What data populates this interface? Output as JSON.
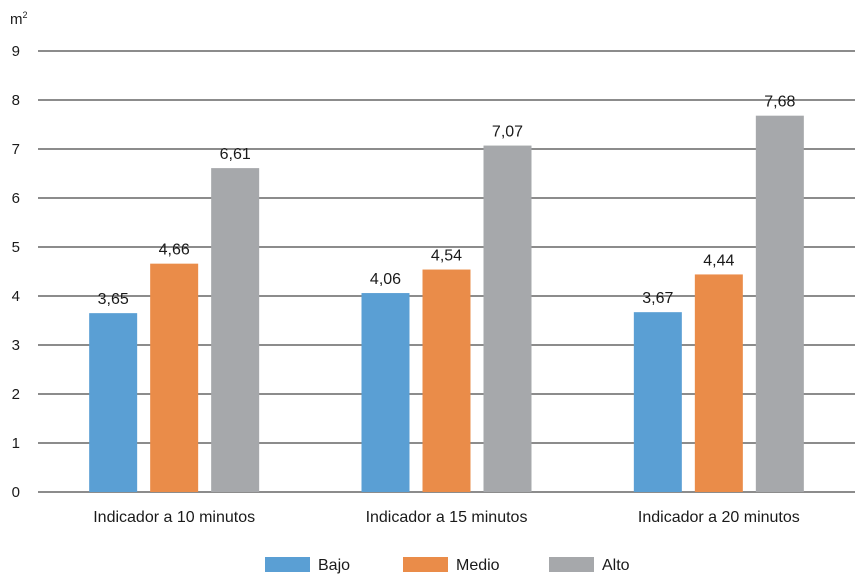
{
  "chart_data": {
    "type": "bar",
    "title": "",
    "xlabel": "",
    "ylabel": "",
    "y_unit": "m",
    "y_unit_superscript": "2",
    "categories": [
      "Indicador a 10 minutos",
      "Indicador a 15 minutos",
      "Indicador a 20 minutos"
    ],
    "series": [
      {
        "name": "Bajo",
        "color": "#5a9fd4",
        "values": [
          3.65,
          4.06,
          3.67
        ],
        "labels": [
          "3,65",
          "4,06",
          "3,67"
        ]
      },
      {
        "name": "Medio",
        "color": "#ea8c49",
        "values": [
          4.66,
          4.54,
          4.44
        ],
        "labels": [
          "4,66",
          "4,54",
          "4,44"
        ]
      },
      {
        "name": "Alto",
        "color": "#a6a8ab",
        "values": [
          6.61,
          7.07,
          7.68
        ],
        "labels": [
          "6,61",
          "7,07",
          "7,68"
        ]
      }
    ],
    "ylim": [
      0,
      9
    ],
    "yticks": [
      "0",
      "1",
      "2",
      "3",
      "4",
      "5",
      "6",
      "7",
      "8",
      "9"
    ],
    "grid": true,
    "legend_position": "bottom-center"
  }
}
